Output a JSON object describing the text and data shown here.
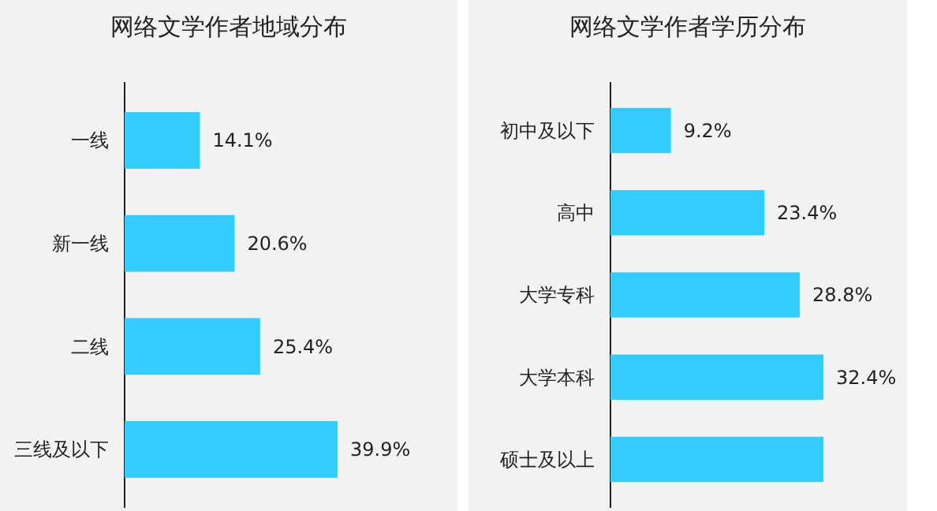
{
  "chart_data": [
    {
      "type": "bar",
      "orientation": "horizontal",
      "title": "网络文学作者地域分布",
      "categories": [
        "一线",
        "新一线",
        "二线",
        "三线及以下"
      ],
      "color": "#33ccff",
      "values": [
        14.1,
        20.6,
        25.4,
        39.9
      ],
      "value_labels": [
        "14.1%",
        "20.6%",
        "25.4%",
        "39.9%"
      ]
    },
    {
      "type": "bar",
      "orientation": "horizontal",
      "title": "网络文学作者学历分布",
      "categories": [
        "初中及以下",
        "高中",
        "大学专科",
        "大学本科",
        "硕士及以上"
      ],
      "color": "#33ccff",
      "values": [
        9.2,
        23.4,
        28.8,
        32.4,
        32.4
      ],
      "value_labels": [
        "9.2%",
        "23.4%",
        "28.8%",
        "32.4%",
        null
      ]
    }
  ]
}
